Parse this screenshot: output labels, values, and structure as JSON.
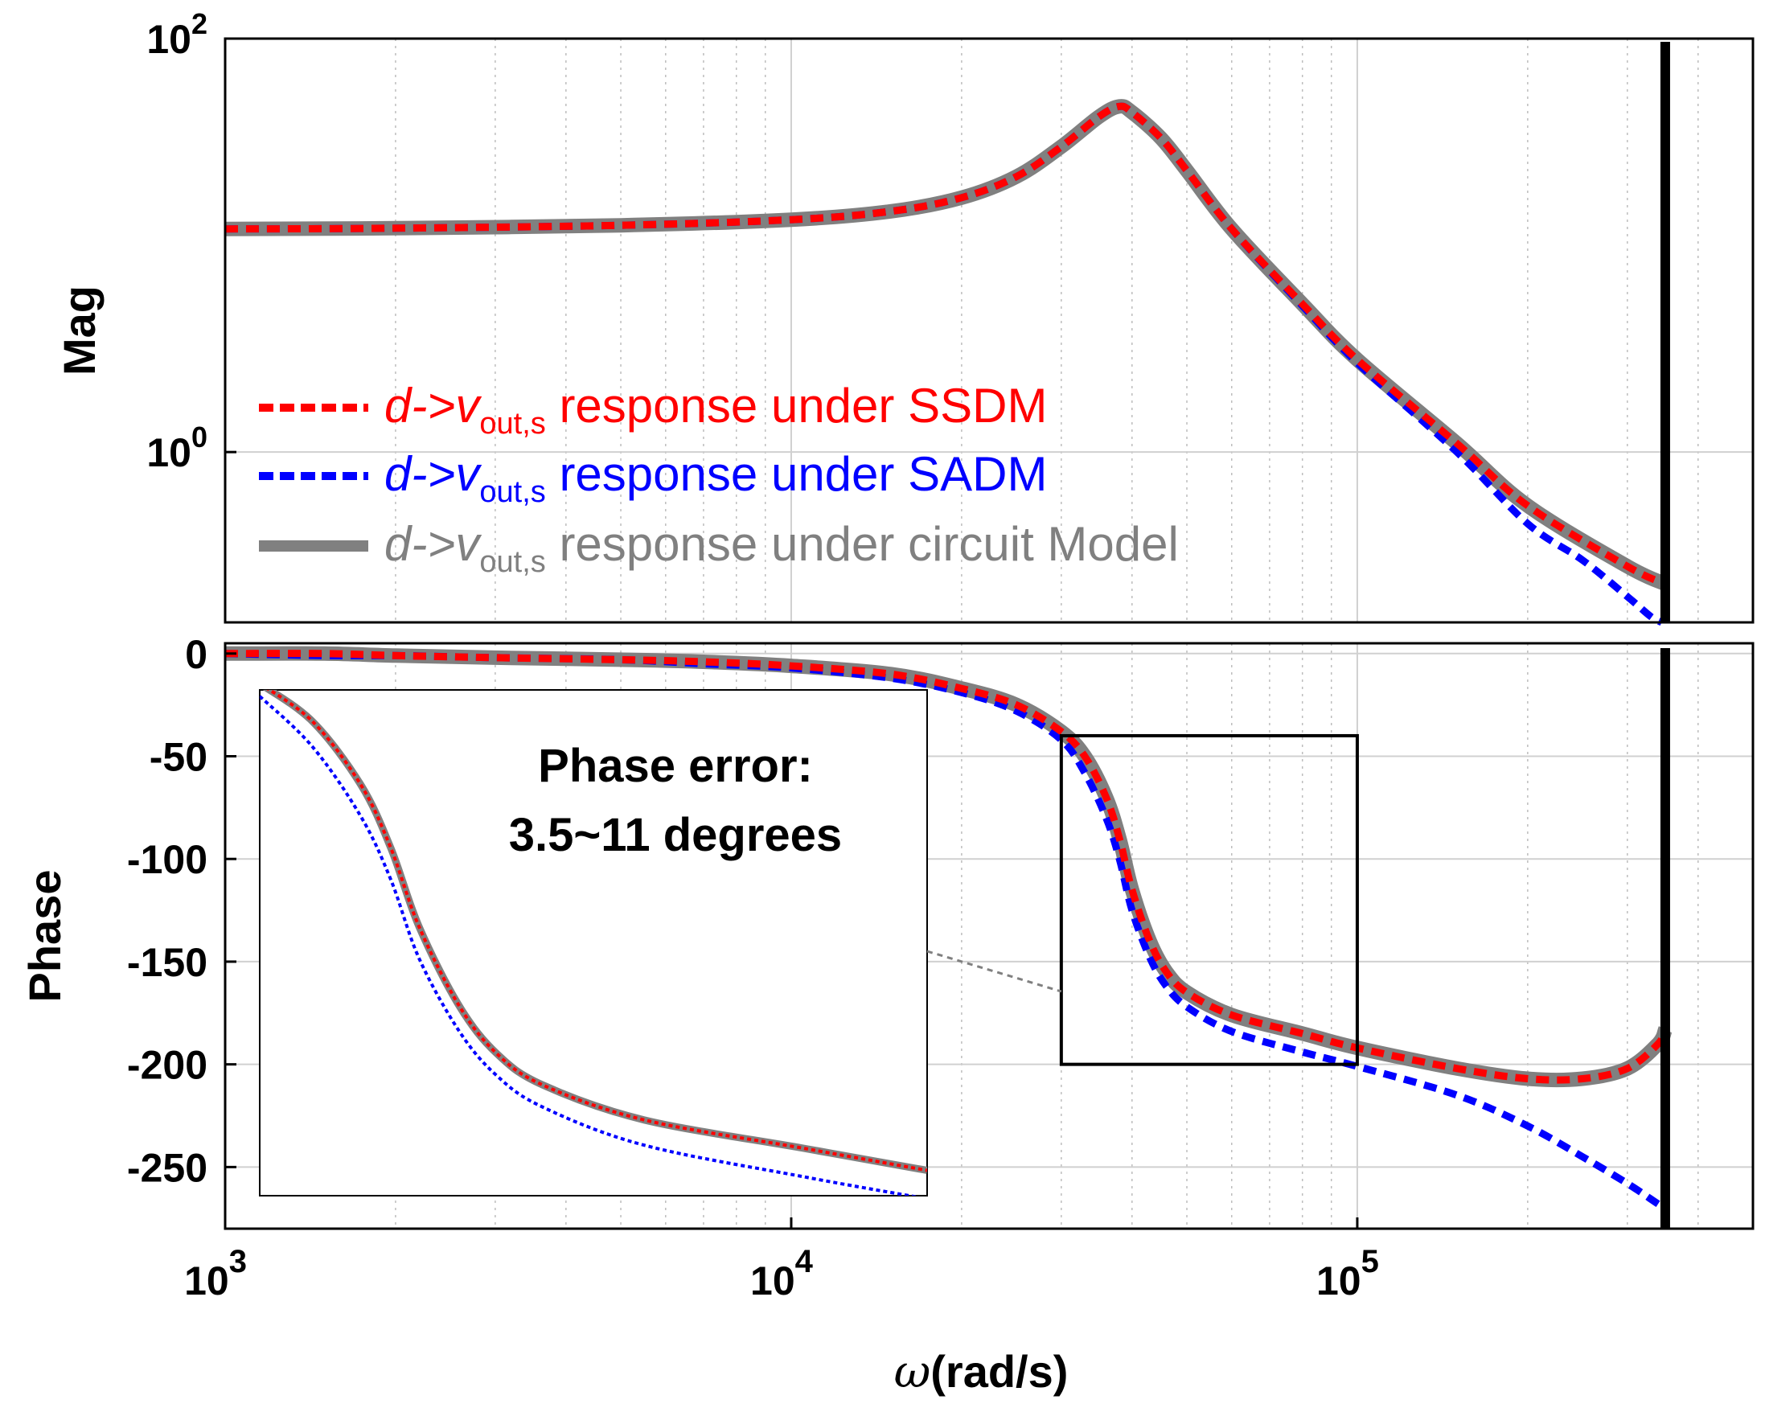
{
  "chart_data": [
    {
      "type": "line",
      "panel": "magnitude",
      "ylabel": "Mag",
      "x_scale": "log",
      "y_scale": "log",
      "xlim": [
        1000,
        500000
      ],
      "ylim": [
        0.15,
        100
      ],
      "y_ticks": [
        {
          "value": 1,
          "base": "10",
          "exp": "0"
        },
        {
          "value": 100,
          "base": "10",
          "exp": "2"
        }
      ],
      "grid": true,
      "legend_position": "lower-left",
      "legend": [
        {
          "prefix": "d->v",
          "sub": "out,s",
          "text": " response under SSDM",
          "color": "#ff0000",
          "dash": true
        },
        {
          "prefix": "d->v",
          "sub": "out,s",
          "text": " response under SADM",
          "color": "#0000ff",
          "dash": true
        },
        {
          "prefix": "d->v",
          "sub": "out,s",
          "text": " response under circuit Model",
          "color": "#808080",
          "dash": false
        }
      ],
      "series": [
        {
          "key": "ssdm",
          "color": "#ff0000",
          "x": [
            1000,
            2000,
            5000,
            10000,
            15000,
            20000,
            25000,
            30000,
            35000,
            38000,
            40000,
            45000,
            50000,
            60000,
            80000,
            100000,
            150000,
            200000,
            300000,
            350000
          ],
          "y": [
            12,
            12.1,
            12.5,
            13.3,
            14.6,
            17,
            21.5,
            30,
            42,
            47,
            44,
            33,
            23,
            12,
            5.2,
            2.8,
            1.1,
            0.55,
            0.28,
            0.23
          ]
        },
        {
          "key": "sadm",
          "color": "#0000ff",
          "x": [
            1000,
            2000,
            5000,
            10000,
            15000,
            20000,
            25000,
            30000,
            35000,
            38000,
            40000,
            45000,
            50000,
            60000,
            80000,
            100000,
            150000,
            200000,
            250000,
            300000,
            330000,
            345000
          ],
          "y": [
            12,
            12.1,
            12.5,
            13.3,
            14.6,
            17,
            21.5,
            30,
            42,
            47,
            44,
            33,
            23,
            12,
            5.1,
            2.7,
            1.0,
            0.45,
            0.3,
            0.2,
            0.16,
            0.15
          ]
        },
        {
          "key": "circuit",
          "color": "#808080",
          "x": [
            1000,
            2000,
            5000,
            10000,
            15000,
            20000,
            25000,
            30000,
            35000,
            38000,
            40000,
            45000,
            50000,
            60000,
            80000,
            100000,
            150000,
            200000,
            300000,
            350000
          ],
          "y": [
            12,
            12.1,
            12.5,
            13.3,
            14.6,
            17,
            21.5,
            30,
            42,
            47,
            44,
            33,
            23,
            12,
            5.2,
            2.8,
            1.1,
            0.55,
            0.28,
            0.23
          ]
        }
      ]
    },
    {
      "type": "line",
      "panel": "phase",
      "ylabel": "Phase",
      "x_scale": "log",
      "xlim": [
        1000,
        500000
      ],
      "ylim": [
        -280,
        5
      ],
      "y_ticks": [
        0,
        -50,
        -100,
        -150,
        -200,
        -250
      ],
      "x_ticks": [
        {
          "value": 1000,
          "base": "10",
          "exp": "3"
        },
        {
          "value": 10000,
          "base": "10",
          "exp": "4"
        },
        {
          "value": 100000,
          "base": "10",
          "exp": "5"
        }
      ],
      "xlabel_symbol": "ω",
      "xlabel": "(rad/s)",
      "grid": true,
      "annotation": [
        "Phase error:",
        "3.5~11 degrees"
      ],
      "zoom_box": {
        "x": [
          30000,
          100000
        ],
        "y": [
          -200,
          -40
        ]
      },
      "series": [
        {
          "key": "ssdm",
          "color": "#ff0000",
          "x": [
            1000,
            1500,
            2000,
            3000,
            5000,
            7000,
            10000,
            15000,
            20000,
            25000,
            30000,
            33000,
            36000,
            38000,
            40000,
            43000,
            46000,
            50000,
            60000,
            80000,
            100000,
            150000,
            200000,
            250000,
            300000,
            340000,
            350000
          ],
          "y": [
            0,
            0,
            -1,
            -2,
            -3,
            -4,
            -6,
            -10,
            -17,
            -25,
            -38,
            -50,
            -70,
            -90,
            -115,
            -140,
            -155,
            -165,
            -176,
            -185,
            -192,
            -202,
            -207,
            -207,
            -202,
            -190,
            -183
          ]
        },
        {
          "key": "sadm",
          "color": "#0000ff",
          "x": [
            1000,
            1500,
            2000,
            3000,
            5000,
            7000,
            10000,
            15000,
            20000,
            25000,
            30000,
            33000,
            36000,
            38000,
            40000,
            43000,
            46000,
            50000,
            60000,
            80000,
            100000,
            150000,
            200000,
            250000,
            300000,
            340000,
            350000
          ],
          "y": [
            0,
            -1,
            -1,
            -2,
            -3,
            -5,
            -7,
            -12,
            -19,
            -28,
            -42,
            -58,
            -80,
            -100,
            -125,
            -148,
            -162,
            -172,
            -184,
            -194,
            -201,
            -215,
            -230,
            -245,
            -258,
            -268,
            -270
          ]
        },
        {
          "key": "circuit",
          "color": "#808080",
          "x": [
            1000,
            1500,
            2000,
            3000,
            5000,
            7000,
            10000,
            15000,
            20000,
            25000,
            30000,
            33000,
            36000,
            38000,
            40000,
            43000,
            46000,
            50000,
            60000,
            80000,
            100000,
            150000,
            200000,
            250000,
            300000,
            340000,
            350000
          ],
          "y": [
            0,
            0,
            -1,
            -2,
            -3,
            -4,
            -6,
            -10,
            -17,
            -25,
            -38,
            -50,
            -70,
            -90,
            -115,
            -140,
            -155,
            -165,
            -176,
            -185,
            -192,
            -202,
            -207,
            -207,
            -202,
            -190,
            -183
          ]
        }
      ]
    }
  ]
}
